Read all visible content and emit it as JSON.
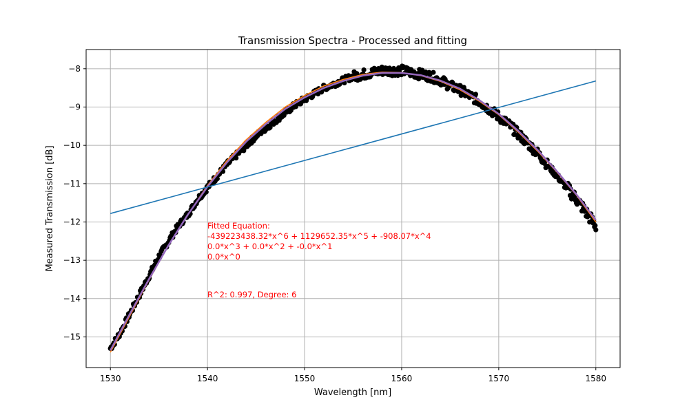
{
  "chart_data": {
    "type": "line",
    "title": "Transmission Spectra - Processed and fitting",
    "xlabel": "Wavelength [nm]",
    "ylabel": "Measured Transmission [dB]",
    "xlim": [
      1527.5,
      1582.5
    ],
    "ylim": [
      -15.8,
      -7.5
    ],
    "xticks": [
      1530,
      1540,
      1550,
      1560,
      1570,
      1580
    ],
    "yticks": [
      -8,
      -9,
      -10,
      -11,
      -12,
      -13,
      -14,
      -15
    ],
    "grid": true,
    "series": [
      {
        "kind": "scatter-band",
        "color": "#000000",
        "x": [
          1530,
          1531,
          1532,
          1533,
          1534,
          1535,
          1536,
          1537,
          1538,
          1539,
          1540,
          1541,
          1542,
          1543,
          1544,
          1545,
          1546,
          1547,
          1548,
          1549,
          1550,
          1551,
          1552,
          1553,
          1554,
          1555,
          1556,
          1557,
          1558,
          1559,
          1560,
          1561,
          1562,
          1563,
          1564,
          1565,
          1566,
          1567,
          1568,
          1569,
          1570,
          1571,
          1572,
          1573,
          1574,
          1575,
          1576,
          1577,
          1578,
          1579,
          1580
        ],
        "y": [
          -15.3,
          -14.9,
          -14.4,
          -13.9,
          -13.4,
          -12.9,
          -12.5,
          -12.1,
          -11.8,
          -11.4,
          -11.1,
          -10.8,
          -10.5,
          -10.25,
          -10.0,
          -9.75,
          -9.55,
          -9.35,
          -9.15,
          -8.95,
          -8.8,
          -8.65,
          -8.5,
          -8.4,
          -8.3,
          -8.2,
          -8.15,
          -8.1,
          -8.05,
          -8.05,
          -8.05,
          -8.1,
          -8.15,
          -8.2,
          -8.3,
          -8.45,
          -8.55,
          -8.7,
          -8.85,
          -9.05,
          -9.25,
          -9.45,
          -9.7,
          -9.95,
          -10.2,
          -10.5,
          -10.8,
          -11.1,
          -11.4,
          -11.75,
          -12.1
        ]
      },
      {
        "kind": "line",
        "color": "#ff7f0e",
        "x": [
          1530,
          1532,
          1534,
          1536,
          1538,
          1540,
          1542,
          1544,
          1546,
          1548,
          1550,
          1552,
          1554,
          1556,
          1558,
          1560,
          1562,
          1564,
          1566,
          1568,
          1570,
          1572,
          1574,
          1576,
          1578,
          1580
        ],
        "y": [
          -15.4,
          -14.45,
          -13.5,
          -12.6,
          -11.8,
          -11.05,
          -10.4,
          -9.85,
          -9.4,
          -9.0,
          -8.7,
          -8.45,
          -8.28,
          -8.15,
          -8.09,
          -8.1,
          -8.18,
          -8.33,
          -8.55,
          -8.85,
          -9.2,
          -9.65,
          -10.15,
          -10.7,
          -11.3,
          -12.0
        ]
      },
      {
        "kind": "line",
        "color": "#9467bd",
        "x": [
          1530,
          1532,
          1534,
          1536,
          1538,
          1540,
          1542,
          1544,
          1546,
          1548,
          1550,
          1552,
          1554,
          1556,
          1558,
          1560,
          1562,
          1564,
          1566,
          1568,
          1570,
          1572,
          1574,
          1576,
          1578,
          1580
        ],
        "y": [
          -15.35,
          -14.4,
          -13.48,
          -12.6,
          -11.8,
          -11.08,
          -10.45,
          -9.9,
          -9.45,
          -9.05,
          -8.75,
          -8.5,
          -8.32,
          -8.18,
          -8.11,
          -8.11,
          -8.17,
          -8.31,
          -8.52,
          -8.82,
          -9.18,
          -9.62,
          -10.12,
          -10.68,
          -11.28,
          -11.95
        ]
      },
      {
        "kind": "line",
        "color": "#1f77b4",
        "x": [
          1530,
          1580
        ],
        "y": [
          -11.78,
          -8.32
        ]
      }
    ],
    "annotation": {
      "color": "#ff0000",
      "lines": [
        "Fitted Equation:",
        "-439223438.32*x^6 + 1129652.35*x^5 + -908.07*x^4",
        "0.0*x^3 + 0.0*x^2 + -0.0*x^1",
        "0.0*x^0"
      ],
      "r2_line": "R^2: 0.997, Degree: 6"
    }
  }
}
